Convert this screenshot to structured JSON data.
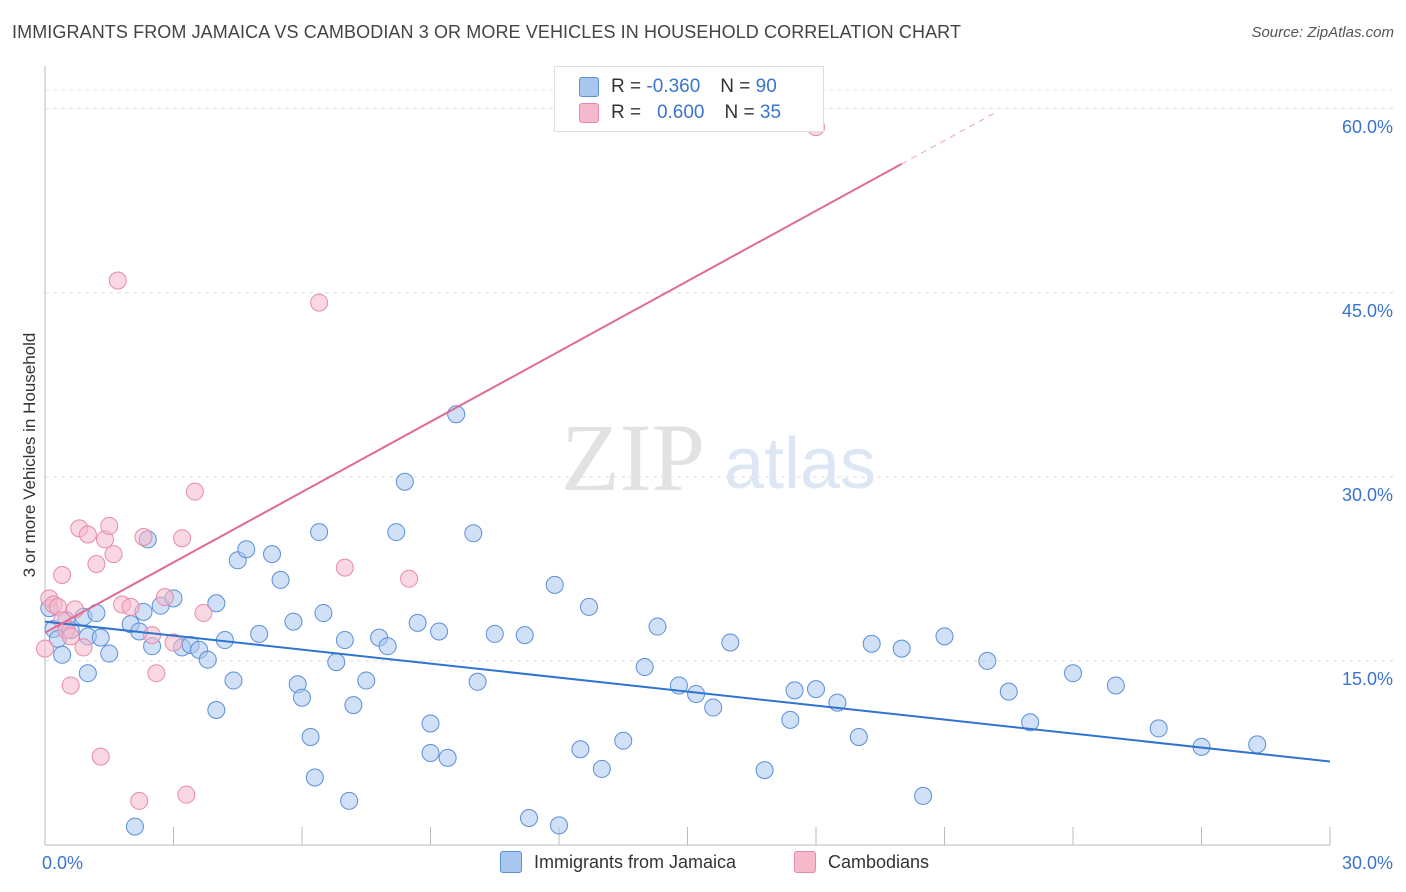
{
  "header": {
    "title": "IMMIGRANTS FROM JAMAICA VS CAMBODIAN 3 OR MORE VEHICLES IN HOUSEHOLD CORRELATION CHART",
    "source": "Source: ZipAtlas.com"
  },
  "watermark": {
    "zip": "ZIP",
    "atlas": "atlas"
  },
  "legend_top": {
    "rows": [
      {
        "r_label": "R =",
        "r_value": "-0.360",
        "n_label": "N =",
        "n_value": "90"
      },
      {
        "r_label": "R =",
        "r_value": "0.600",
        "n_label": "N =",
        "n_value": "35"
      }
    ]
  },
  "chart_data": {
    "type": "scatter",
    "title": "IMMIGRANTS FROM JAMAICA VS CAMBODIAN 3 OR MORE VEHICLES IN HOUSEHOLD CORRELATION CHART",
    "xlabel": "",
    "ylabel": "3 or more Vehicles in Household",
    "xlim": [
      0,
      30
    ],
    "ylim": [
      0,
      60
    ],
    "x_tick_labels": [
      "0.0%",
      "30.0%"
    ],
    "y_tick_labels": [
      "15.0%",
      "30.0%",
      "45.0%",
      "60.0%"
    ],
    "y_ticks": [
      15,
      30,
      45,
      60
    ],
    "grid": true,
    "legend_placement": "bottom",
    "colors": {
      "jamaica_fill": "#a9c6ee",
      "jamaica_stroke": "#5b8fd8",
      "jamaica_line": "#2f74d0",
      "cambodian_fill": "#f6b8cb",
      "cambodian_stroke": "#e88aa8",
      "cambodian_line": "#e06a92",
      "tick_text": "#3a73d0"
    },
    "series": [
      {
        "name": "Immigrants from Jamaica",
        "trend": {
          "x": [
            0,
            30
          ],
          "y": [
            18.2,
            6.8
          ]
        },
        "points": [
          [
            0.1,
            19.3
          ],
          [
            0.2,
            17.6
          ],
          [
            0.3,
            16.8
          ],
          [
            0.4,
            15.5
          ],
          [
            0.5,
            18.3
          ],
          [
            0.6,
            17.5
          ],
          [
            0.9,
            18.6
          ],
          [
            1.0,
            17.0
          ],
          [
            1.2,
            18.9
          ],
          [
            1.3,
            16.9
          ],
          [
            1.5,
            15.6
          ],
          [
            1.0,
            14.0
          ],
          [
            2.0,
            18.0
          ],
          [
            2.2,
            17.4
          ],
          [
            2.3,
            19.0
          ],
          [
            2.5,
            16.2
          ],
          [
            2.7,
            19.5
          ],
          [
            3.0,
            20.1
          ],
          [
            3.2,
            16.1
          ],
          [
            3.4,
            16.3
          ],
          [
            3.6,
            15.9
          ],
          [
            3.8,
            15.1
          ],
          [
            4.0,
            19.7
          ],
          [
            4.2,
            16.7
          ],
          [
            4.4,
            13.4
          ],
          [
            4.5,
            23.2
          ],
          [
            4.7,
            24.1
          ],
          [
            5.0,
            17.2
          ],
          [
            5.3,
            23.7
          ],
          [
            5.5,
            21.6
          ],
          [
            5.8,
            18.2
          ],
          [
            5.9,
            13.1
          ],
          [
            6.0,
            12.0
          ],
          [
            6.2,
            8.8
          ],
          [
            6.4,
            25.5
          ],
          [
            6.5,
            18.9
          ],
          [
            6.8,
            14.9
          ],
          [
            7.0,
            16.7
          ],
          [
            7.2,
            11.4
          ],
          [
            7.5,
            13.4
          ],
          [
            7.8,
            16.9
          ],
          [
            8.0,
            16.2
          ],
          [
            8.2,
            25.5
          ],
          [
            8.4,
            29.6
          ],
          [
            8.7,
            18.1
          ],
          [
            9.0,
            7.5
          ],
          [
            9.4,
            7.1
          ],
          [
            9.2,
            17.4
          ],
          [
            9.6,
            35.1
          ],
          [
            10.0,
            25.4
          ],
          [
            10.1,
            13.3
          ],
          [
            10.5,
            17.2
          ],
          [
            11.2,
            17.1
          ],
          [
            11.3,
            2.2
          ],
          [
            11.9,
            21.2
          ],
          [
            12.0,
            1.6
          ],
          [
            12.5,
            7.8
          ],
          [
            12.7,
            19.4
          ],
          [
            13.0,
            6.2
          ],
          [
            13.5,
            8.5
          ],
          [
            14.0,
            14.5
          ],
          [
            14.3,
            17.8
          ],
          [
            14.8,
            13.0
          ],
          [
            15.2,
            12.3
          ],
          [
            15.6,
            11.2
          ],
          [
            16.0,
            16.5
          ],
          [
            16.8,
            6.1
          ],
          [
            17.4,
            10.2
          ],
          [
            17.5,
            12.6
          ],
          [
            18.0,
            12.7
          ],
          [
            18.5,
            11.6
          ],
          [
            19.0,
            8.8
          ],
          [
            19.3,
            16.4
          ],
          [
            20.0,
            16.0
          ],
          [
            20.5,
            4.0
          ],
          [
            21.0,
            17.0
          ],
          [
            22.0,
            15.0
          ],
          [
            22.5,
            12.5
          ],
          [
            23.0,
            10.0
          ],
          [
            24.0,
            14.0
          ],
          [
            25.0,
            13.0
          ],
          [
            26.0,
            9.5
          ],
          [
            27.0,
            8.0
          ],
          [
            28.3,
            8.2
          ],
          [
            2.1,
            1.5
          ],
          [
            6.3,
            5.5
          ],
          [
            7.1,
            3.6
          ],
          [
            9.0,
            9.9
          ],
          [
            2.4,
            24.9
          ],
          [
            4.0,
            11.0
          ]
        ]
      },
      {
        "name": "Cambodians",
        "trend": {
          "x": [
            0,
            20
          ],
          "y": [
            17.3,
            55.5
          ]
        },
        "points": [
          [
            0.0,
            16.0
          ],
          [
            0.1,
            20.1
          ],
          [
            0.2,
            19.6
          ],
          [
            0.3,
            19.4
          ],
          [
            0.4,
            18.3
          ],
          [
            0.5,
            17.5
          ],
          [
            0.6,
            17.0
          ],
          [
            0.7,
            19.2
          ],
          [
            0.8,
            25.8
          ],
          [
            1.0,
            25.3
          ],
          [
            1.2,
            22.9
          ],
          [
            1.4,
            24.9
          ],
          [
            1.6,
            23.7
          ],
          [
            1.7,
            46.0
          ],
          [
            1.8,
            19.6
          ],
          [
            2.0,
            19.4
          ],
          [
            2.3,
            25.1
          ],
          [
            2.5,
            17.1
          ],
          [
            2.6,
            14.0
          ],
          [
            3.0,
            16.5
          ],
          [
            3.2,
            25.0
          ],
          [
            3.5,
            28.8
          ],
          [
            3.7,
            18.9
          ],
          [
            6.4,
            44.2
          ],
          [
            7.0,
            22.6
          ],
          [
            8.5,
            21.7
          ],
          [
            0.6,
            13.0
          ],
          [
            1.3,
            7.2
          ],
          [
            2.2,
            3.6
          ],
          [
            3.3,
            4.1
          ],
          [
            18.0,
            58.5
          ],
          [
            0.4,
            22.0
          ],
          [
            1.5,
            26.0
          ],
          [
            2.8,
            20.2
          ],
          [
            0.9,
            16.1
          ]
        ]
      }
    ]
  },
  "bottom_legend": {
    "items": [
      {
        "label": "Immigrants from Jamaica"
      },
      {
        "label": "Cambodians"
      }
    ]
  }
}
